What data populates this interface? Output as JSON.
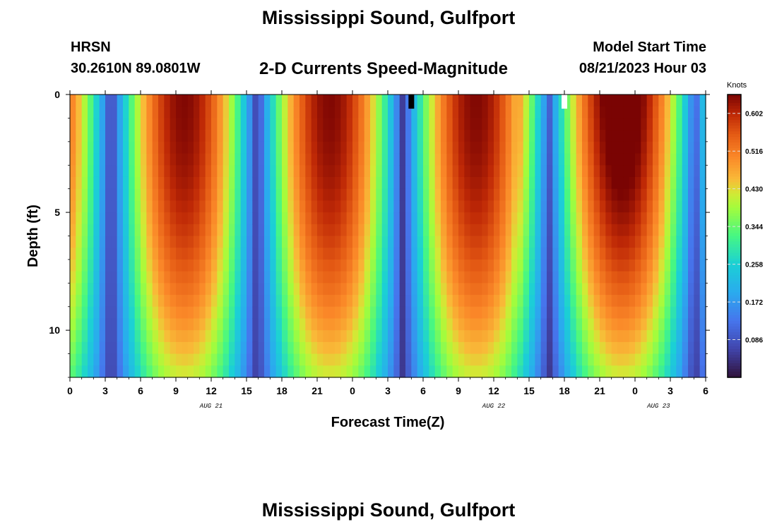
{
  "page": {
    "title": "Mississippi Sound, Gulfport",
    "footer_title": "Mississippi Sound, Gulfport",
    "station": "HRSN",
    "coords": "30.2610N  89.0801W",
    "model_label": "Model Start Time",
    "model_time": "08/21/2023 Hour 03"
  },
  "chart_data": {
    "type": "heatmap",
    "title": "2-D Currents Speed-Magnitude",
    "xlabel": "Forecast Time(Z)",
    "ylabel": "Depth (ft)",
    "units": "Knots",
    "x_hours": [
      0,
      54
    ],
    "y_depth_ft": [
      0,
      12
    ],
    "y_inverted": true,
    "x_tick_labels": [
      "0",
      "3",
      "6",
      "9",
      "12",
      "15",
      "18",
      "21",
      "0",
      "3",
      "6",
      "9",
      "12",
      "15",
      "18",
      "21",
      "0",
      "3",
      "6"
    ],
    "y_tick_labels": [
      "0",
      "5",
      "10"
    ],
    "day_labels": [
      {
        "label": "AUG 21",
        "hour": 12
      },
      {
        "label": "AUG 22",
        "hour": 36
      },
      {
        "label": "AUG 23",
        "hour": 50
      }
    ],
    "colorbar_ticks": [
      "0.086",
      "0.172",
      "0.258",
      "0.344",
      "0.430",
      "0.516",
      "0.602"
    ],
    "value_range": [
      0.0,
      0.645
    ],
    "markers": [
      {
        "hour": 29,
        "depth_ft": 0.3,
        "color": "#000000"
      },
      {
        "hour": 42,
        "depth_ft": 0.3,
        "color": "#ffffff"
      }
    ],
    "grid": false
  }
}
